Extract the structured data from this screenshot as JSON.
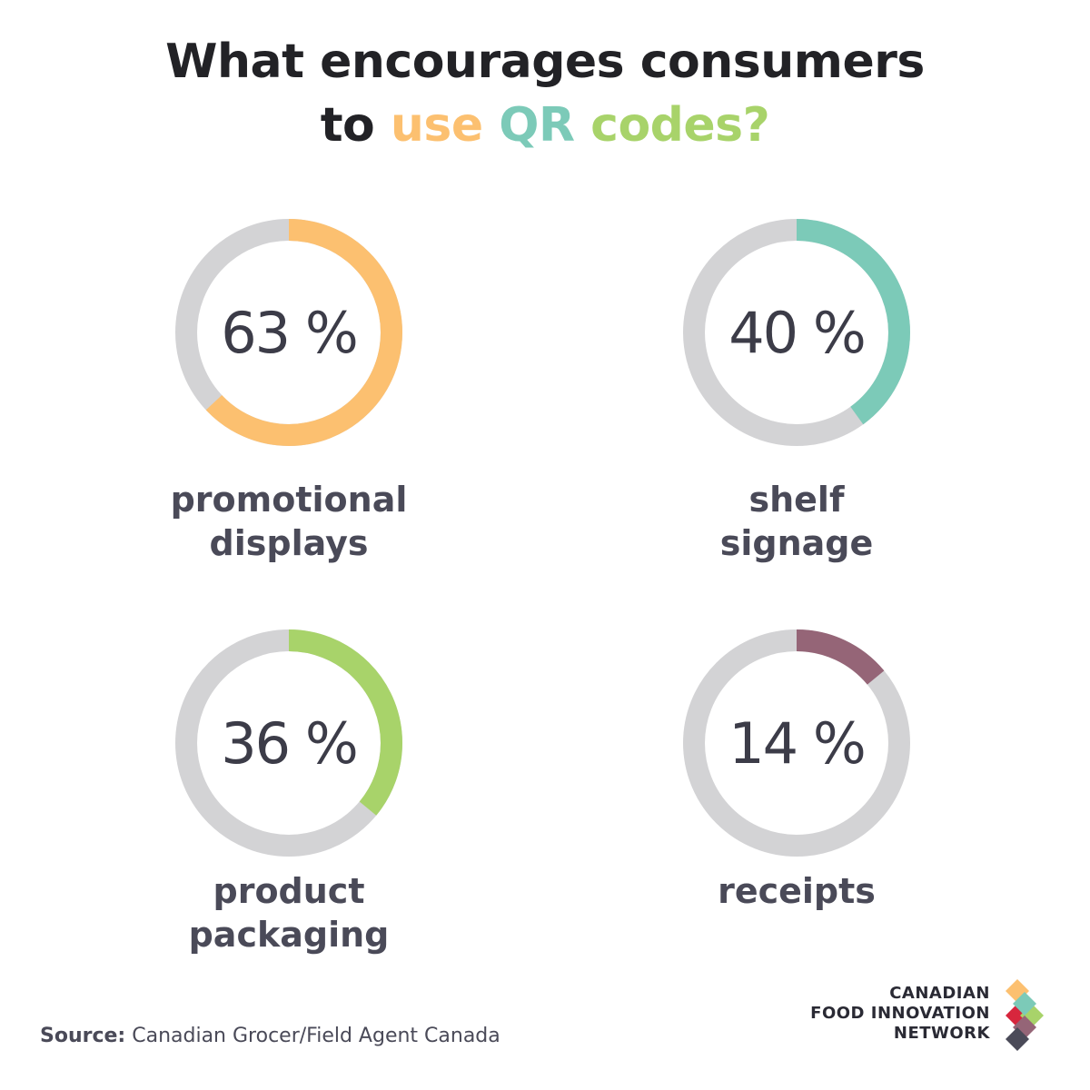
{
  "title": {
    "line1": "What encourages consumers",
    "line2_prefix": "to",
    "line2_use": "use",
    "line2_qr": "QR",
    "line2_codes": "codes?"
  },
  "chart_data": {
    "type": "pie",
    "title": "What encourages consumers to use QR codes?",
    "unit": "%",
    "items": [
      {
        "label": "promotional displays",
        "label_lines": [
          "promotional",
          "displays"
        ],
        "value": 63,
        "display": "63 %",
        "color": "#fcc070"
      },
      {
        "label": "shelf signage",
        "label_lines": [
          "shelf",
          "signage"
        ],
        "value": 40,
        "display": "40 %",
        "color": "#7ccab8"
      },
      {
        "label": "product packaging",
        "label_lines": [
          "product",
          "packaging"
        ],
        "value": 36,
        "display": "36 %",
        "color": "#a8d36a"
      },
      {
        "label": "receipts",
        "label_lines": [
          "receipts"
        ],
        "value": 14,
        "display": "14 %",
        "color": "#956577"
      }
    ],
    "track_color": "#d3d3d5"
  },
  "source": {
    "label": "Source:",
    "text": "Canadian Grocer/Field Agent Canada"
  },
  "logo": {
    "lines": [
      "CANADIAN",
      "FOOD INNOVATION",
      "NETWORK"
    ],
    "colors": [
      "#fcc070",
      "#d7263d",
      "#a8d36a",
      "#7ccab8",
      "#956577",
      "#4a4a58"
    ]
  }
}
